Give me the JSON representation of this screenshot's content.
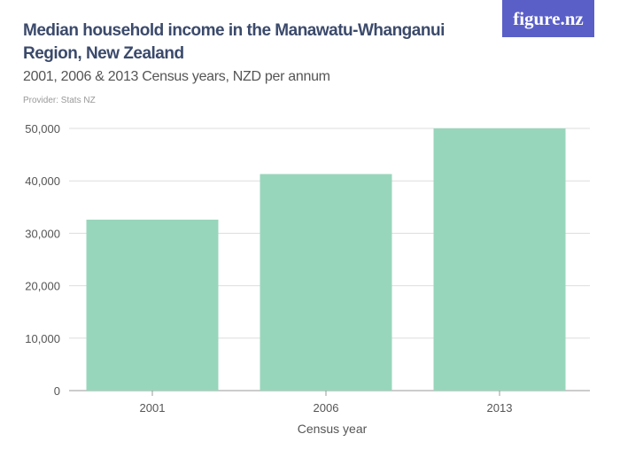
{
  "header": {
    "title": "Median household income in the Manawatu-Whanganui Region, New Zealand",
    "subtitle": "2001, 2006 & 2013 Census years, NZD per annum",
    "provider": "Provider: Stats NZ",
    "logo": "figure.nz",
    "logo_color": "#5a5fc8"
  },
  "chart_data": {
    "type": "bar",
    "title": "Median household income in the Manawatu-Whanganui Region, New Zealand",
    "subtitle": "2001, 2006 & 2013 Census years, NZD per annum",
    "categories": [
      "2001",
      "2006",
      "2013"
    ],
    "values": [
      32600,
      41300,
      50000
    ],
    "xlabel": "Census year",
    "ylabel": "",
    "ylim": [
      0,
      50000
    ],
    "yticks": [
      0,
      10000,
      20000,
      30000,
      40000,
      50000
    ],
    "ytick_labels": [
      "0",
      "10,000",
      "20,000",
      "30,000",
      "40,000",
      "50,000"
    ],
    "grid": true,
    "bar_color": "#98d6bb"
  }
}
